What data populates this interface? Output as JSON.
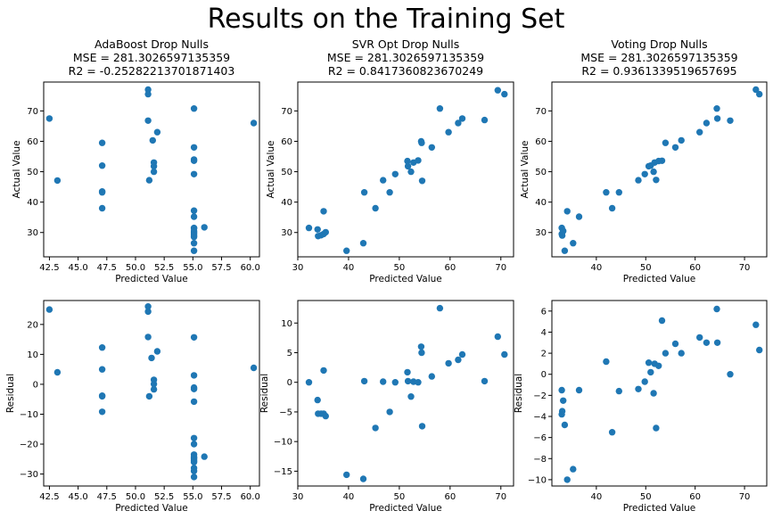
{
  "figure": {
    "title": "Results on the Training Set"
  },
  "chart_data": [
    {
      "type": "scatter",
      "title": "AdaBoost Drop Nulls\nMSE = 281.3026597135359\nR2 = -0.25282213701871403",
      "xlabel": "Predicted Value",
      "ylabel": "Actual Value",
      "xlim": [
        42.0,
        60.8
      ],
      "ylim": [
        22,
        79.5
      ],
      "xticks": [
        "42.5",
        "45.0",
        "47.5",
        "50.0",
        "52.5",
        "55.0",
        "57.5",
        "60.0"
      ],
      "xtick_values": [
        42.5,
        45.0,
        47.5,
        50.0,
        52.5,
        55.0,
        57.5,
        60.0
      ],
      "yticks": [
        "30",
        "40",
        "50",
        "60",
        "70"
      ],
      "ytick_values": [
        30,
        40,
        50,
        60,
        70
      ],
      "color": "#1f77b4",
      "x": [
        42.5,
        43.2,
        47.1,
        47.1,
        47.1,
        47.1,
        47.1,
        51.1,
        51.1,
        51.1,
        51.2,
        51.5,
        51.6,
        51.6,
        51.6,
        51.9,
        55.1,
        55.1,
        55.1,
        55.1,
        55.1,
        55.1,
        55.1,
        55.1,
        55.1,
        55.1,
        55.1,
        55.1,
        55.1,
        55.1,
        55.1,
        55.1,
        56.0,
        60.3
      ],
      "y": [
        67.5,
        47.1,
        59.5,
        52.0,
        43.5,
        43.2,
        38.0,
        77.0,
        75.5,
        66.8,
        47.2,
        60.3,
        53.0,
        51.8,
        50.0,
        63.0,
        70.8,
        58.0,
        54.0,
        53.6,
        49.2,
        37.2,
        35.2,
        31.4,
        30.5,
        30.0,
        29.5,
        29.0,
        28.5,
        26.5,
        24.0,
        31.5,
        31.7,
        66.0
      ]
    },
    {
      "type": "scatter",
      "title": "SVR Opt Drop Nulls\nMSE = 281.3026597135359\nR2 = 0.8417360823670249",
      "xlabel": "Predicted Value",
      "ylabel": "Actual Value",
      "xlim": [
        30.0,
        72.5
      ],
      "ylim": [
        22,
        79.5
      ],
      "xticks": [
        "30",
        "40",
        "50",
        "60",
        "70"
      ],
      "xtick_values": [
        30,
        40,
        50,
        60,
        70
      ],
      "yticks": [
        "30",
        "40",
        "50",
        "60",
        "70"
      ],
      "ytick_values": [
        30,
        40,
        50,
        60,
        70
      ],
      "color": "#1f77b4",
      "x": [
        32.2,
        33.9,
        34.0,
        34.6,
        35.1,
        35.1,
        35.5,
        39.6,
        42.9,
        43.1,
        45.3,
        46.8,
        48.1,
        49.2,
        51.6,
        51.7,
        52.3,
        52.8,
        53.7,
        54.3,
        54.4,
        54.5,
        56.4,
        58.0,
        59.7,
        61.6,
        62.4,
        66.8,
        69.4,
        70.7
      ],
      "y": [
        31.5,
        31.0,
        28.8,
        29.1,
        37.0,
        29.5,
        30.1,
        24.0,
        26.5,
        43.2,
        38.0,
        47.2,
        43.2,
        49.2,
        53.5,
        51.8,
        50.0,
        53.0,
        53.7,
        60.0,
        59.5,
        47.0,
        58.0,
        70.8,
        63.0,
        66.0,
        67.5,
        67.0,
        76.8,
        75.5
      ]
    },
    {
      "type": "scatter",
      "title": "Voting Drop Nulls\nMSE = 281.3026597135359\nR2 = 0.9361339519657695",
      "xlabel": "Predicted Value",
      "ylabel": "Actual Value",
      "xlim": [
        31.0,
        74.5
      ],
      "ylim": [
        22,
        79.5
      ],
      "xticks": [
        "40",
        "50",
        "60",
        "70"
      ],
      "xtick_values": [
        40,
        50,
        60,
        70
      ],
      "yticks": [
        "30",
        "40",
        "50",
        "60",
        "70"
      ],
      "ytick_values": [
        30,
        40,
        50,
        60,
        70
      ],
      "color": "#1f77b4",
      "x": [
        33.0,
        33.0,
        33.1,
        33.3,
        33.6,
        34.1,
        35.3,
        36.5,
        42.0,
        43.2,
        44.6,
        48.5,
        49.8,
        50.6,
        51.0,
        51.6,
        51.8,
        52.1,
        52.6,
        53.3,
        54.0,
        56.0,
        57.2,
        60.9,
        62.3,
        64.4,
        64.5,
        67.1,
        72.3,
        73.0
      ],
      "y": [
        31.5,
        29.5,
        29.0,
        30.5,
        24.0,
        37.0,
        26.5,
        35.2,
        43.2,
        38.0,
        43.2,
        47.2,
        49.2,
        51.8,
        52.0,
        50.0,
        53.0,
        47.3,
        53.5,
        53.6,
        59.5,
        58.0,
        60.3,
        63.0,
        66.0,
        70.8,
        67.5,
        66.8,
        77.0,
        75.5
      ]
    },
    {
      "type": "scatter",
      "title": "",
      "xlabel": "Predicted Value",
      "ylabel": "Residual",
      "xlim": [
        42.0,
        60.8
      ],
      "ylim": [
        -34,
        28
      ],
      "xticks": [
        "42.5",
        "45.0",
        "47.5",
        "50.0",
        "52.5",
        "55.0",
        "57.5",
        "60.0"
      ],
      "xtick_values": [
        42.5,
        45.0,
        47.5,
        50.0,
        52.5,
        55.0,
        57.5,
        60.0
      ],
      "yticks": [
        "−30",
        "−20",
        "−10",
        "0",
        "10",
        "20"
      ],
      "ytick_values": [
        -30,
        -20,
        -10,
        0,
        10,
        20
      ],
      "color": "#1f77b4",
      "x": [
        42.5,
        43.2,
        47.1,
        47.1,
        47.1,
        47.1,
        47.1,
        51.1,
        51.1,
        51.1,
        51.2,
        51.4,
        51.6,
        51.6,
        51.6,
        51.9,
        55.1,
        55.1,
        55.1,
        55.1,
        55.1,
        55.1,
        55.1,
        55.1,
        55.1,
        55.1,
        55.1,
        55.1,
        55.1,
        55.1,
        55.1,
        55.1,
        56.0,
        60.3
      ],
      "y": [
        25.0,
        4.0,
        12.3,
        5.0,
        -3.8,
        -4.0,
        -9.2,
        26.0,
        24.3,
        15.8,
        -4.0,
        8.8,
        1.5,
        0.1,
        -1.7,
        11.0,
        15.7,
        3.0,
        -1.1,
        -1.6,
        -5.8,
        -18.0,
        -20.0,
        -23.5,
        -24.5,
        -25.0,
        -25.6,
        -26.0,
        -28.0,
        -29.0,
        -31.0,
        -24.2,
        -24.2,
        5.5
      ]
    },
    {
      "type": "scatter",
      "title": "",
      "xlabel": "Predicted Value",
      "ylabel": "Residual",
      "xlim": [
        30.0,
        72.5
      ],
      "ylim": [
        -17.5,
        13.8
      ],
      "xticks": [
        "30",
        "40",
        "50",
        "60",
        "70"
      ],
      "xtick_values": [
        30,
        40,
        50,
        60,
        70
      ],
      "yticks": [
        "−15",
        "−10",
        "−5",
        "0",
        "5",
        "10"
      ],
      "ytick_values": [
        -15,
        -10,
        -5,
        0,
        5,
        10
      ],
      "color": "#1f77b4",
      "x": [
        32.2,
        33.9,
        34.0,
        34.6,
        35.1,
        35.1,
        35.5,
        39.6,
        42.9,
        43.1,
        45.3,
        46.8,
        48.1,
        49.2,
        51.6,
        51.7,
        52.3,
        52.8,
        53.7,
        54.3,
        54.4,
        54.5,
        56.4,
        58.0,
        59.7,
        61.6,
        62.4,
        66.8,
        69.4,
        70.7
      ],
      "y": [
        0.0,
        -3.0,
        -5.3,
        -5.3,
        2.0,
        -5.3,
        -5.7,
        -15.6,
        -16.3,
        0.2,
        -7.7,
        0.1,
        -5.0,
        0.0,
        1.7,
        0.2,
        -2.4,
        0.1,
        0.0,
        6.0,
        5.0,
        -7.4,
        1.0,
        12.5,
        3.2,
        3.8,
        4.7,
        0.2,
        7.7,
        4.7
      ]
    },
    {
      "type": "scatter",
      "title": "",
      "xlabel": "Predicted Value",
      "ylabel": "Residual",
      "xlim": [
        31.0,
        74.5
      ],
      "ylim": [
        -10.6,
        7.0
      ],
      "xticks": [
        "40",
        "50",
        "60",
        "70"
      ],
      "xtick_values": [
        40,
        50,
        60,
        70
      ],
      "yticks": [
        "−10",
        "−8",
        "−6",
        "−4",
        "−2",
        "0",
        "2",
        "4",
        "6"
      ],
      "ytick_values": [
        -10,
        -8,
        -6,
        -4,
        -2,
        0,
        2,
        4,
        6
      ],
      "color": "#1f77b4",
      "x": [
        33.0,
        33.0,
        33.1,
        33.3,
        33.6,
        34.1,
        35.3,
        36.5,
        42.0,
        43.2,
        44.6,
        48.5,
        49.8,
        50.6,
        51.0,
        51.6,
        51.8,
        52.1,
        52.6,
        53.3,
        54.0,
        56.0,
        57.2,
        60.9,
        62.3,
        64.4,
        64.5,
        67.1,
        72.3,
        73.0
      ],
      "y": [
        -1.5,
        -3.8,
        -3.5,
        -2.5,
        -4.8,
        -10.0,
        -9.0,
        -1.5,
        1.2,
        -5.5,
        -1.6,
        -1.4,
        -0.7,
        1.1,
        0.2,
        -1.8,
        1.0,
        -5.1,
        0.8,
        5.1,
        2.0,
        2.9,
        2.0,
        3.5,
        3.0,
        6.2,
        3.0,
        0.0,
        4.7,
        2.3
      ]
    }
  ]
}
